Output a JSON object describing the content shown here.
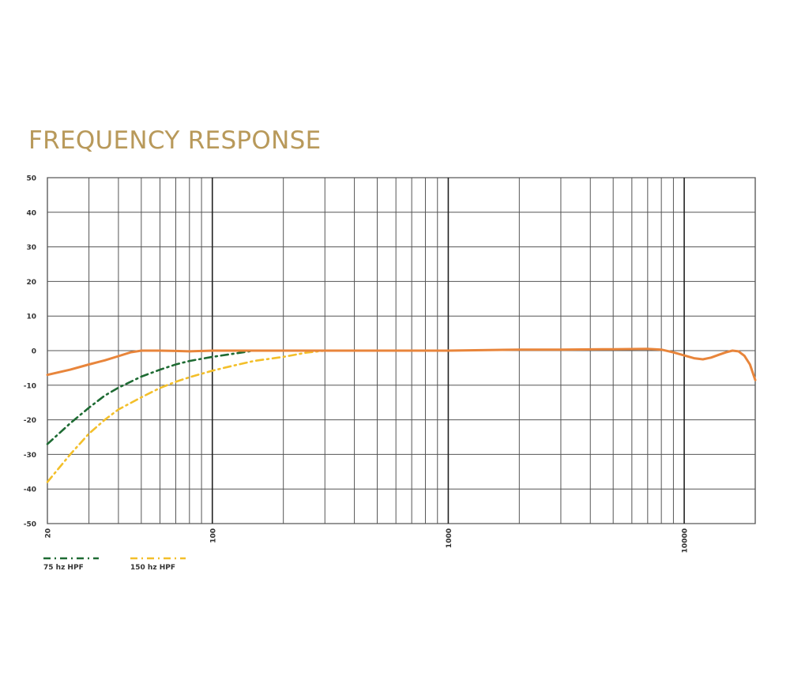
{
  "title": "FREQUENCY RESPONSE",
  "chart_data": {
    "type": "line",
    "title": "FREQUENCY RESPONSE",
    "xscale": "log",
    "xlim": [
      20,
      20000
    ],
    "ylim": [
      -50,
      50
    ],
    "x_tick_labels": [
      {
        "value": 20,
        "label": "20"
      },
      {
        "value": 100,
        "label": "100"
      },
      {
        "value": 1000,
        "label": "1000"
      },
      {
        "value": 10000,
        "label": "10000"
      }
    ],
    "y_ticks": [
      50,
      40,
      30,
      20,
      10,
      0,
      -10,
      -20,
      -30,
      -40,
      -50
    ],
    "grid": true,
    "legend_position": "bottom-left",
    "series": [
      {
        "color": "#e8853b",
        "style": "solid",
        "points": [
          [
            20,
            -7
          ],
          [
            25,
            -5.5
          ],
          [
            30,
            -4
          ],
          [
            35,
            -2.8
          ],
          [
            40,
            -1.6
          ],
          [
            45,
            -0.5
          ],
          [
            50,
            0
          ],
          [
            60,
            0
          ],
          [
            70,
            -0.1
          ],
          [
            80,
            -0.2
          ],
          [
            100,
            0
          ],
          [
            150,
            0
          ],
          [
            200,
            0
          ],
          [
            300,
            0
          ],
          [
            500,
            0
          ],
          [
            1000,
            0
          ],
          [
            2000,
            0.3
          ],
          [
            3000,
            0.3
          ],
          [
            5000,
            0.4
          ],
          [
            7000,
            0.5
          ],
          [
            8000,
            0.3
          ],
          [
            9000,
            -0.5
          ],
          [
            10000,
            -1.4
          ],
          [
            11000,
            -2.2
          ],
          [
            12000,
            -2.5
          ],
          [
            13000,
            -2.0
          ],
          [
            14000,
            -1.2
          ],
          [
            15000,
            -0.5
          ],
          [
            16000,
            0
          ],
          [
            17000,
            -0.2
          ],
          [
            18000,
            -1.5
          ],
          [
            19000,
            -4
          ],
          [
            20000,
            -8.5
          ]
        ]
      },
      {
        "name": "75 hz HPF",
        "color": "#1e6b33",
        "style": "dashdot",
        "points": [
          [
            20,
            -27
          ],
          [
            25,
            -21
          ],
          [
            30,
            -16.5
          ],
          [
            35,
            -13
          ],
          [
            40,
            -10.7
          ],
          [
            50,
            -7.5
          ],
          [
            60,
            -5.5
          ],
          [
            70,
            -4
          ],
          [
            80,
            -3
          ],
          [
            100,
            -1.8
          ],
          [
            120,
            -1
          ],
          [
            150,
            0
          ],
          [
            200,
            0
          ]
        ]
      },
      {
        "name": "150 hz HPF",
        "color": "#f3bf2a",
        "style": "dashdot",
        "points": [
          [
            20,
            -38
          ],
          [
            25,
            -30
          ],
          [
            30,
            -24
          ],
          [
            35,
            -20
          ],
          [
            40,
            -17
          ],
          [
            50,
            -13.5
          ],
          [
            60,
            -10.8
          ],
          [
            70,
            -9
          ],
          [
            80,
            -7.7
          ],
          [
            100,
            -5.8
          ],
          [
            120,
            -4.5
          ],
          [
            150,
            -3
          ],
          [
            200,
            -1.8
          ],
          [
            250,
            -0.6
          ],
          [
            300,
            0
          ],
          [
            400,
            0
          ]
        ]
      }
    ]
  }
}
